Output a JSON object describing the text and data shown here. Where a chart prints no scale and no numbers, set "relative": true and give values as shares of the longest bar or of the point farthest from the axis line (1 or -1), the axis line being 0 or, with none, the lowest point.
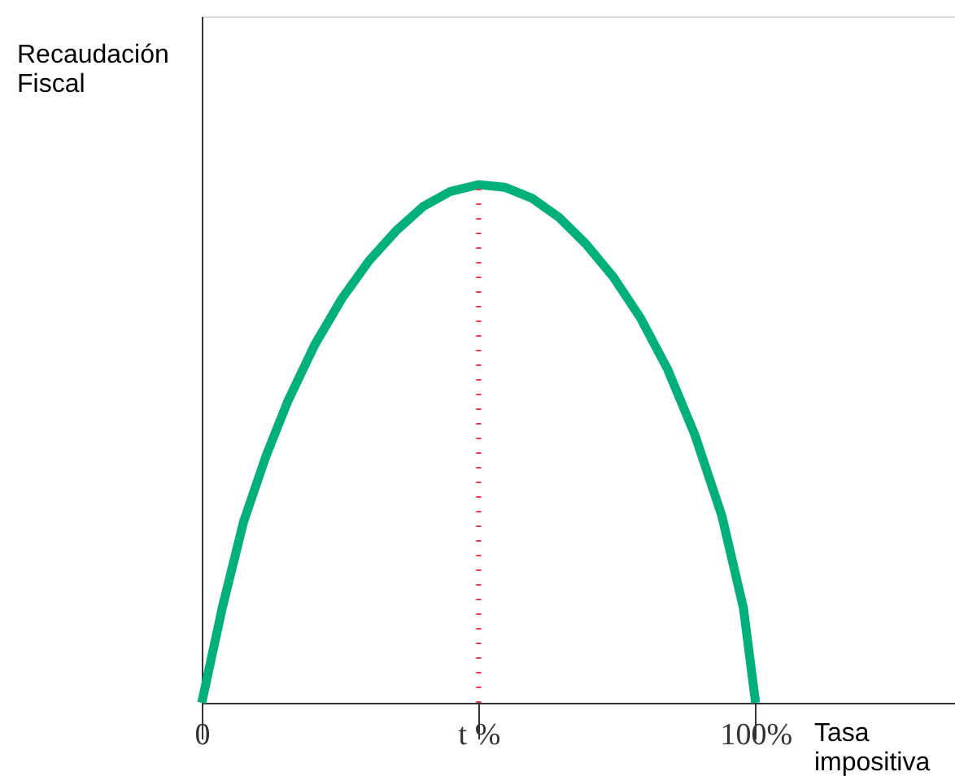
{
  "chart_data": {
    "type": "line",
    "relative": true,
    "xlabel": "Tasa impositiva",
    "ylabel": "Recaudación Fiscal",
    "xlim": [
      0,
      136
    ],
    "xticks": [
      {
        "value": 0,
        "label": "0"
      },
      {
        "value": 50,
        "label": "t %"
      },
      {
        "value": 100,
        "label": "100%"
      }
    ],
    "x": [
      0,
      3.7,
      7.6,
      11.6,
      15.5,
      20.4,
      25.3,
      30.2,
      35.1,
      40.0,
      44.9,
      50,
      54.7,
      59.6,
      64.5,
      69.4,
      74.3,
      79.2,
      84.1,
      89.0,
      93.9,
      97.8,
      100
    ],
    "series": [
      {
        "color": "#00b07a",
        "values": [
          0,
          0.183,
          0.351,
          0.476,
          0.581,
          0.691,
          0.78,
          0.853,
          0.911,
          0.958,
          0.987,
          1.0,
          0.995,
          0.974,
          0.937,
          0.885,
          0.822,
          0.743,
          0.644,
          0.518,
          0.361,
          0.183,
          0
        ]
      }
    ],
    "ref_lines": [
      {
        "axis": "x",
        "value": 50,
        "label": null,
        "color": "#ee3344",
        "line_style": "dotted"
      }
    ],
    "grid": false,
    "marker": "none",
    "line_style": "solid"
  }
}
